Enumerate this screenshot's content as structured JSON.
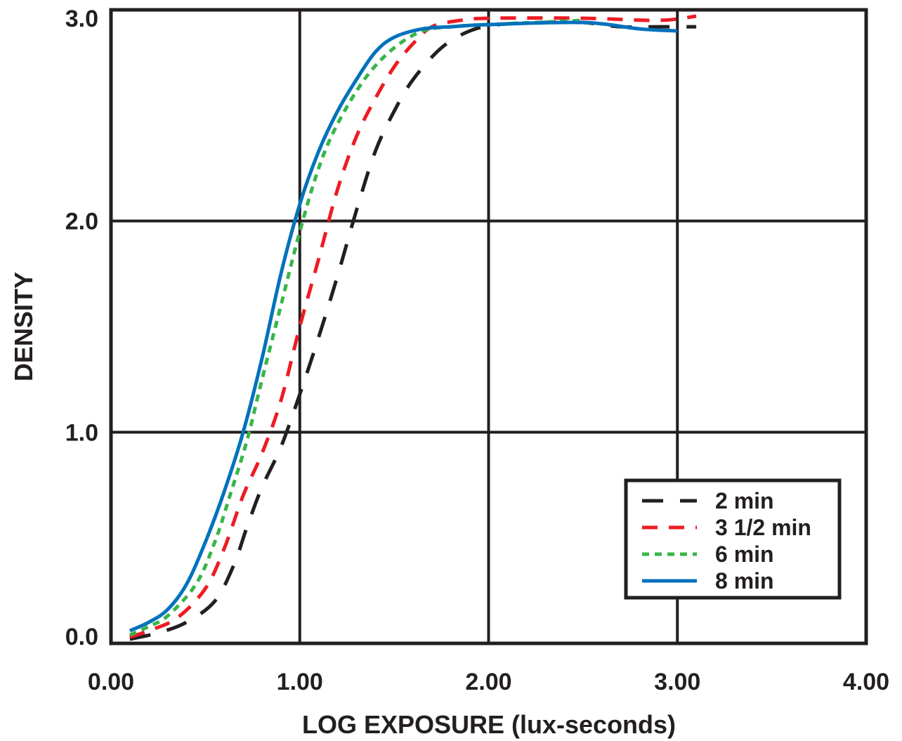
{
  "chart_data": {
    "type": "line",
    "title": "",
    "xlabel": "LOG EXPOSURE (lux-seconds)",
    "ylabel": "DENSITY",
    "xlim": [
      0.0,
      4.0
    ],
    "ylim": [
      0.0,
      3.0
    ],
    "x_ticks": [
      {
        "value": 0.0,
        "label": "0.00"
      },
      {
        "value": 1.0,
        "label": "1.00"
      },
      {
        "value": 2.0,
        "label": "2.00"
      },
      {
        "value": 3.0,
        "label": "3.00"
      },
      {
        "value": 4.0,
        "label": "4.00"
      }
    ],
    "y_ticks": [
      {
        "value": 0.0,
        "label": "0.0"
      },
      {
        "value": 1.0,
        "label": "1.0"
      },
      {
        "value": 2.0,
        "label": "2.0"
      },
      {
        "value": 3.0,
        "label": "3.0"
      }
    ],
    "grid": true,
    "legend_position": "bottom-right",
    "series": [
      {
        "name": "2 min",
        "color": "#231f20",
        "dash": "long-dash",
        "points": [
          [
            0.1,
            0.02
          ],
          [
            0.25,
            0.05
          ],
          [
            0.4,
            0.1
          ],
          [
            0.55,
            0.2
          ],
          [
            0.65,
            0.37
          ],
          [
            0.72,
            0.55
          ],
          [
            0.8,
            0.74
          ],
          [
            0.9,
            0.93
          ],
          [
            1.0,
            1.18
          ],
          [
            1.1,
            1.45
          ],
          [
            1.2,
            1.74
          ],
          [
            1.3,
            2.05
          ],
          [
            1.4,
            2.33
          ],
          [
            1.5,
            2.52
          ],
          [
            1.6,
            2.67
          ],
          [
            1.75,
            2.82
          ],
          [
            1.9,
            2.9
          ],
          [
            2.05,
            2.93
          ],
          [
            2.3,
            2.94
          ],
          [
            2.5,
            2.94
          ],
          [
            2.7,
            2.92
          ],
          [
            2.9,
            2.92
          ],
          [
            3.1,
            2.92
          ]
        ]
      },
      {
        "name": "3 1/2 min",
        "color": "#ed1c24",
        "dash": "dash",
        "points": [
          [
            0.1,
            0.03
          ],
          [
            0.2,
            0.06
          ],
          [
            0.35,
            0.12
          ],
          [
            0.5,
            0.26
          ],
          [
            0.6,
            0.45
          ],
          [
            0.7,
            0.7
          ],
          [
            0.8,
            0.9
          ],
          [
            0.9,
            1.15
          ],
          [
            1.0,
            1.5
          ],
          [
            1.1,
            1.82
          ],
          [
            1.2,
            2.15
          ],
          [
            1.3,
            2.4
          ],
          [
            1.4,
            2.58
          ],
          [
            1.5,
            2.73
          ],
          [
            1.6,
            2.84
          ],
          [
            1.7,
            2.92
          ],
          [
            1.85,
            2.95
          ],
          [
            2.0,
            2.96
          ],
          [
            2.5,
            2.96
          ],
          [
            2.9,
            2.95
          ],
          [
            3.1,
            2.97
          ]
        ]
      },
      {
        "name": "6 min",
        "color": "#39b54a",
        "dash": "dot",
        "points": [
          [
            0.1,
            0.04
          ],
          [
            0.2,
            0.08
          ],
          [
            0.3,
            0.13
          ],
          [
            0.45,
            0.28
          ],
          [
            0.55,
            0.48
          ],
          [
            0.63,
            0.7
          ],
          [
            0.72,
            0.96
          ],
          [
            0.8,
            1.25
          ],
          [
            0.9,
            1.6
          ],
          [
            1.0,
            1.95
          ],
          [
            1.1,
            2.25
          ],
          [
            1.2,
            2.46
          ],
          [
            1.35,
            2.68
          ],
          [
            1.5,
            2.82
          ],
          [
            1.65,
            2.9
          ],
          [
            1.8,
            2.92
          ],
          [
            2.0,
            2.93
          ],
          [
            2.5,
            2.95
          ]
        ]
      },
      {
        "name": "8 min",
        "color": "#0072bc",
        "dash": "solid",
        "points": [
          [
            0.1,
            0.06
          ],
          [
            0.2,
            0.1
          ],
          [
            0.3,
            0.16
          ],
          [
            0.4,
            0.28
          ],
          [
            0.5,
            0.48
          ],
          [
            0.6,
            0.72
          ],
          [
            0.7,
            1.0
          ],
          [
            0.8,
            1.35
          ],
          [
            0.9,
            1.75
          ],
          [
            1.0,
            2.08
          ],
          [
            1.1,
            2.33
          ],
          [
            1.2,
            2.52
          ],
          [
            1.3,
            2.67
          ],
          [
            1.4,
            2.8
          ],
          [
            1.5,
            2.87
          ],
          [
            1.65,
            2.91
          ],
          [
            1.8,
            2.92
          ],
          [
            2.0,
            2.93
          ],
          [
            2.5,
            2.94
          ],
          [
            2.8,
            2.91
          ],
          [
            3.0,
            2.9
          ]
        ]
      }
    ]
  }
}
